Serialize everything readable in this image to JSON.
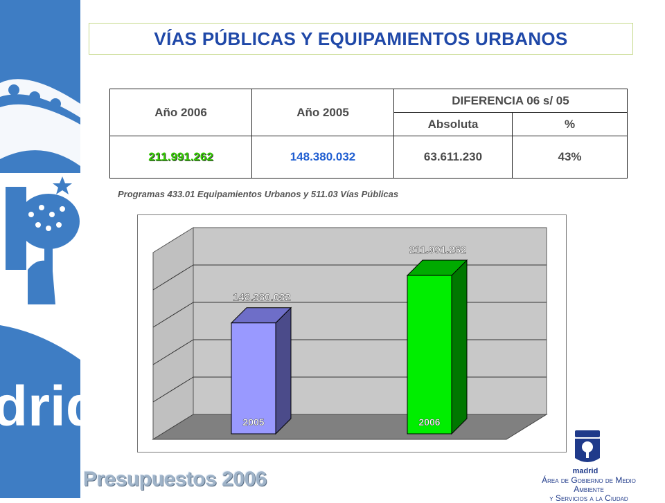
{
  "header": {
    "title": "VÍAS PÚBLICAS Y EQUIPAMIENTOS URBANOS"
  },
  "table": {
    "col_2006": "Año 2006",
    "col_2005": "Año 2005",
    "col_diff": "DIFERENCIA 06 s/ 05",
    "col_abs": "Absoluta",
    "col_pct": "%",
    "val_2006": "211.991.262",
    "val_2005": "148.380.032",
    "val_abs": "63.611.230",
    "val_pct": "43%"
  },
  "note": "Programas 433.01 Equipamientos Urbanos y 511.03 Vías Públicas",
  "chart_data": {
    "type": "bar",
    "categories": [
      "2005",
      "2006"
    ],
    "values": [
      148380032,
      211991262
    ],
    "data_labels": [
      "148.380.032",
      "211.991.262"
    ],
    "colors": [
      "#9999ff",
      "#00ee00"
    ],
    "ylim": [
      0,
      250000000
    ],
    "grid": true,
    "three_d": true
  },
  "sidebar": {
    "logo_text": "drid"
  },
  "footer": {
    "left_text": "Presupuestos 2006",
    "logo_word": "madrid",
    "department_line1": "Área de Gobierno de Medio Ambiente",
    "department_line2": "y Servicios a la Ciudad"
  },
  "colors": {
    "sidebar_blue": "#3e7dc4",
    "title_blue": "#1f48a8",
    "accent_green": "#33cc00"
  }
}
